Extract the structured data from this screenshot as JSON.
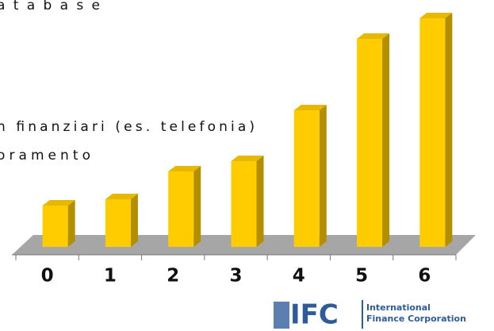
{
  "chart_data": {
    "type": "bar3d",
    "texts": [
      "atabase",
      "n finanziari (es. telefonia)",
      "oramento"
    ],
    "categories": [
      "0",
      "1",
      "2",
      "3",
      "4",
      "5",
      "6"
    ],
    "values": [
      52,
      60,
      95,
      108,
      172,
      262,
      288
    ],
    "color": "#ffcc00",
    "logo": {
      "mark": "IFC",
      "line1": "International",
      "line2": "Finance Corporation"
    }
  }
}
